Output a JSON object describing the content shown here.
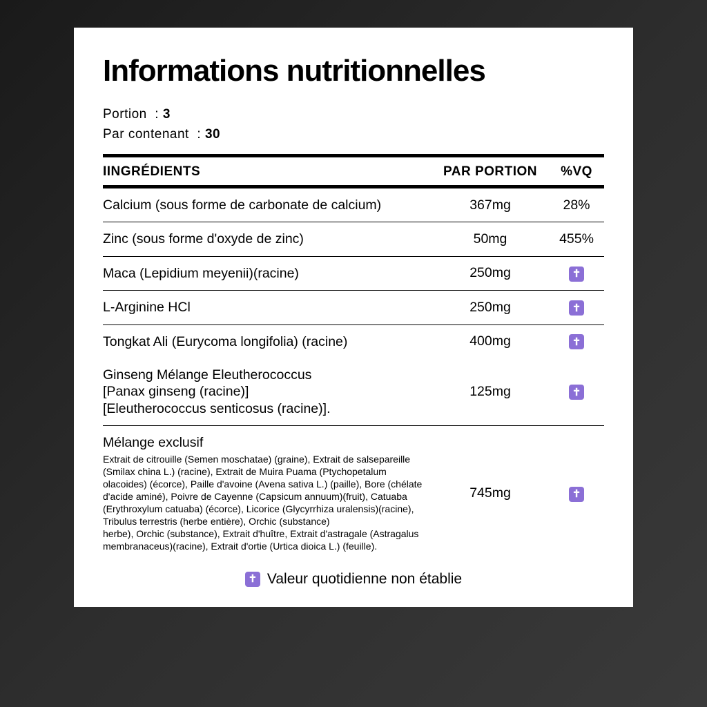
{
  "title": "Informations nutritionnelles",
  "portion_label": "Portion",
  "portion_value": "3",
  "container_label": "Par contenant",
  "container_value": "30",
  "headers": {
    "ingredients": "IINGRÉDIENTS",
    "per_portion": "PAR PORTION",
    "dv": "%VQ"
  },
  "rows": [
    {
      "name": "Calcium (sous forme de carbonate de calcium)",
      "portion": "367mg",
      "dv": "28%",
      "dagger": false
    },
    {
      "name": "Zinc (sous forme d'oxyde de zinc)",
      "portion": "50mg",
      "dv": "455%",
      "dagger": false
    },
    {
      "name": "Maca (Lepidium meyenii)(racine)",
      "portion": "250mg",
      "dv": "",
      "dagger": true
    },
    {
      "name": "L-Arginine HCl",
      "portion": "250mg",
      "dv": "",
      "dagger": true
    },
    {
      "name": "Tongkat Ali (Eurycoma longifolia) (racine)",
      "portion": "400mg",
      "dv": "",
      "dagger": true
    }
  ],
  "ginseng": {
    "line1": "Ginseng Mélange Eleutherococcus",
    "line2": "[Panax ginseng (racine)]",
    "line3": "[Eleutherococcus senticosus (racine)].",
    "portion": "125mg"
  },
  "blend": {
    "title": "Mélange exclusif",
    "text": "Extrait de citrouille (Semen moschatae) (graine), Extrait de salsepareille (Smilax china L.) (racine), Extrait de Muira Puama (Ptychopetalum olacoides) (écorce), Paille d'avoine (Avena sativa L.) (paille), Bore (chélate d'acide aminé), Poivre de Cayenne (Capsicum annuum)(fruit), Catuaba (Erythroxylum catuaba) (écorce), Licorice (Glycyrrhiza uralensis)(racine), Tribulus terrestris (herbe entière), Orchic (substance)\nherbe), Orchic (substance), Extrait d'huître, Extrait d'astragale (Astragalus membranaceus)(racine), Extrait d'ortie (Urtica dioica L.) (feuille).",
    "portion": "745mg"
  },
  "footer": "Valeur quotidienne non établie",
  "dagger_glyph": "✝",
  "colors": {
    "dagger_bg": "#8b6fd6",
    "panel_bg": "#ffffff",
    "text": "#000000"
  }
}
